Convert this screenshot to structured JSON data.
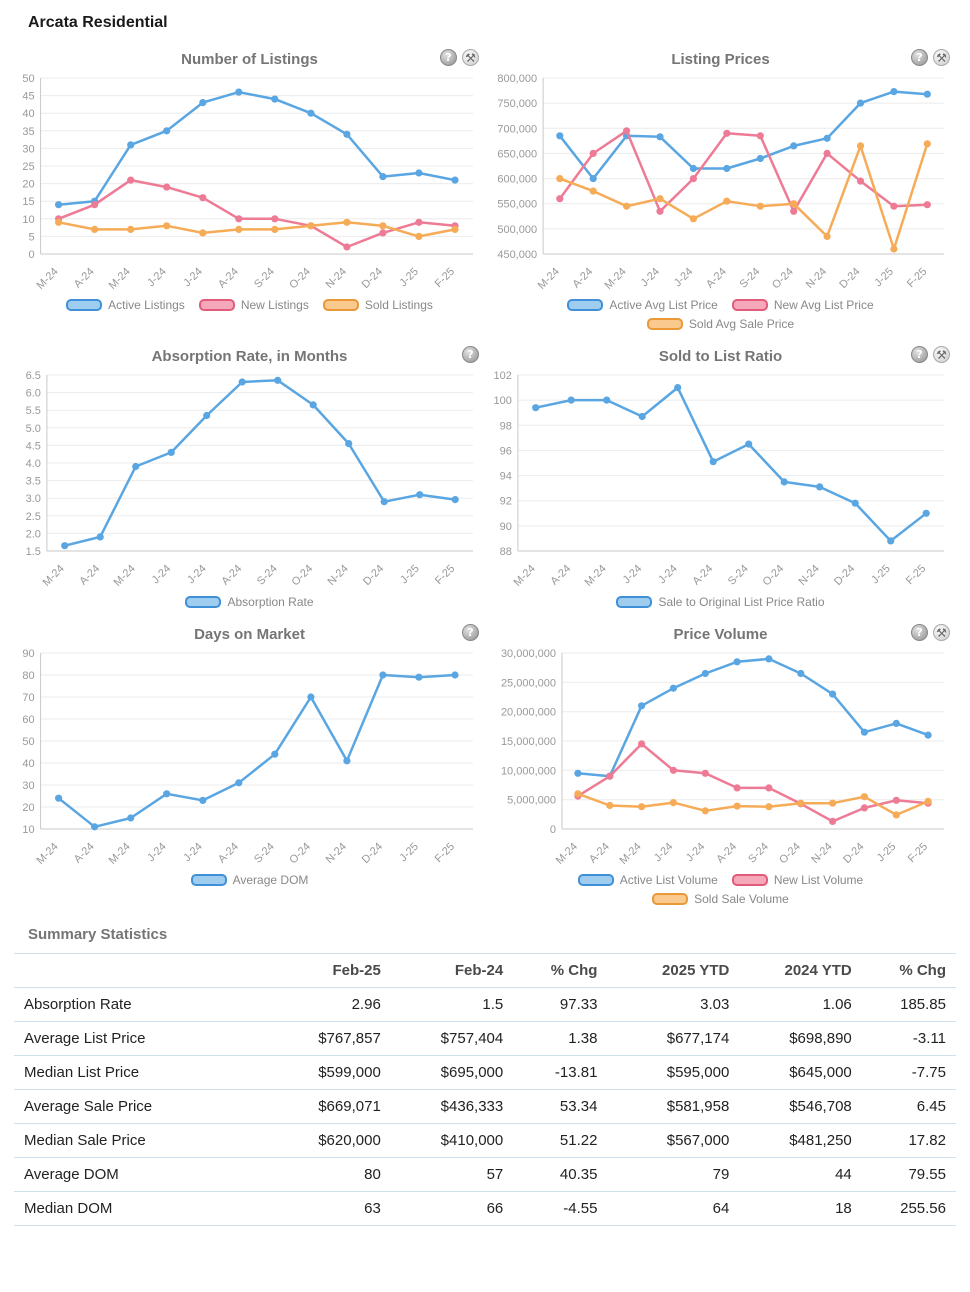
{
  "page": {
    "title": "Arcata Residential"
  },
  "icons": {
    "info": "?",
    "tools": "⚒"
  },
  "colors": {
    "blue": {
      "line": "#5aa6e2",
      "fill": "#9fcdf0",
      "border": "#4090d8"
    },
    "pink": {
      "line": "#ee7b95",
      "fill": "#f4a8ba",
      "border": "#e25b7b"
    },
    "orange": {
      "line": "#f6ab57",
      "fill": "#f9c98d",
      "border": "#ea9838"
    }
  },
  "chart_data": [
    {
      "title": "Number of Listings",
      "type": "line",
      "x": [
        "M-24",
        "A-24",
        "M-24",
        "J-24",
        "J-24",
        "A-24",
        "S-24",
        "O-24",
        "N-24",
        "D-24",
        "J-25",
        "F-25"
      ],
      "ylim": [
        0,
        50
      ],
      "ystep": 5,
      "yformat": "int",
      "grid": true,
      "legend_position": "bottom",
      "icons": [
        "info",
        "tools"
      ],
      "series": [
        {
          "name": "Active Listings",
          "color": "blue",
          "values": [
            14,
            15,
            31,
            35,
            43,
            46,
            44,
            40,
            34,
            22,
            23,
            21
          ]
        },
        {
          "name": "New Listings",
          "color": "pink",
          "values": [
            10,
            14,
            21,
            19,
            16,
            10,
            10,
            8,
            2,
            6,
            9,
            8
          ]
        },
        {
          "name": "Sold Listings",
          "color": "orange",
          "values": [
            9,
            7,
            7,
            8,
            6,
            7,
            7,
            8,
            9,
            8,
            5,
            7
          ]
        }
      ]
    },
    {
      "title": "Listing Prices",
      "type": "line",
      "x": [
        "M-24",
        "A-24",
        "M-24",
        "J-24",
        "J-24",
        "A-24",
        "S-24",
        "O-24",
        "N-24",
        "D-24",
        "J-25",
        "F-25"
      ],
      "ylim": [
        450000,
        800000
      ],
      "ystep": 50000,
      "yformat": "comma",
      "grid": true,
      "legend_position": "bottom",
      "icons": [
        "info",
        "tools"
      ],
      "series": [
        {
          "name": "Active Avg List Price",
          "color": "blue",
          "values": [
            685000,
            600000,
            685000,
            683000,
            620000,
            620000,
            640000,
            665000,
            680000,
            750000,
            773000,
            767857
          ]
        },
        {
          "name": "New Avg List Price",
          "color": "pink",
          "values": [
            560000,
            650000,
            695000,
            535000,
            600000,
            690000,
            685000,
            535000,
            650000,
            595000,
            545000,
            548000
          ]
        },
        {
          "name": "Sold Avg Sale Price",
          "color": "orange",
          "values": [
            600000,
            575000,
            545000,
            560000,
            520000,
            555000,
            545000,
            550000,
            485000,
            665000,
            460000,
            669071
          ]
        }
      ]
    },
    {
      "title": "Absorption Rate, in Months",
      "type": "line",
      "x": [
        "M-24",
        "A-24",
        "M-24",
        "J-24",
        "J-24",
        "A-24",
        "S-24",
        "O-24",
        "N-24",
        "D-24",
        "J-25",
        "F-25"
      ],
      "ylim": [
        1.5,
        6.5
      ],
      "ystep": 0.5,
      "yformat": "dec1",
      "grid": true,
      "legend_position": "bottom",
      "icons": [
        "info"
      ],
      "series": [
        {
          "name": "Absorption Rate",
          "color": "blue",
          "values": [
            1.65,
            1.9,
            3.9,
            4.3,
            5.35,
            6.3,
            6.35,
            5.65,
            4.55,
            2.9,
            3.1,
            2.96
          ]
        }
      ]
    },
    {
      "title": "Sold to List Ratio",
      "type": "line",
      "x": [
        "M-24",
        "A-24",
        "M-24",
        "J-24",
        "J-24",
        "A-24",
        "S-24",
        "O-24",
        "N-24",
        "D-24",
        "J-25",
        "F-25"
      ],
      "ylim": [
        88,
        102
      ],
      "ystep": 2,
      "yformat": "int",
      "grid": true,
      "legend_position": "bottom",
      "icons": [
        "info",
        "tools"
      ],
      "series": [
        {
          "name": "Sale to Original List Price Ratio",
          "color": "blue",
          "values": [
            99.4,
            100,
            100,
            98.7,
            101,
            95.1,
            96.5,
            93.5,
            93.1,
            91.8,
            88.8,
            91
          ]
        }
      ]
    },
    {
      "title": "Days on Market",
      "type": "line",
      "x": [
        "M-24",
        "A-24",
        "M-24",
        "J-24",
        "J-24",
        "A-24",
        "S-24",
        "O-24",
        "N-24",
        "D-24",
        "J-25",
        "F-25"
      ],
      "ylim": [
        10,
        90
      ],
      "ystep": 10,
      "yformat": "int",
      "grid": true,
      "legend_position": "bottom",
      "icons": [
        "info"
      ],
      "series": [
        {
          "name": "Average DOM",
          "color": "blue",
          "values": [
            24,
            11,
            15,
            26,
            23,
            31,
            44,
            70,
            41,
            80,
            79,
            80
          ]
        }
      ]
    },
    {
      "title": "Price Volume",
      "type": "line",
      "x": [
        "M-24",
        "A-24",
        "M-24",
        "J-24",
        "J-24",
        "A-24",
        "S-24",
        "O-24",
        "N-24",
        "D-24",
        "J-25",
        "F-25"
      ],
      "ylim": [
        0,
        30000000
      ],
      "ystep": 5000000,
      "yformat": "comma",
      "grid": true,
      "legend_position": "bottom",
      "icons": [
        "info",
        "tools"
      ],
      "series": [
        {
          "name": "Active List Volume",
          "color": "blue",
          "values": [
            9500000,
            9000000,
            21000000,
            24000000,
            26500000,
            28500000,
            29000000,
            26500000,
            23000000,
            16500000,
            18000000,
            16000000
          ]
        },
        {
          "name": "New List Volume",
          "color": "pink",
          "values": [
            5600000,
            9000000,
            14500000,
            10000000,
            9500000,
            7000000,
            7000000,
            4300000,
            1300000,
            3600000,
            4900000,
            4400000
          ]
        },
        {
          "name": "Sold Sale Volume",
          "color": "orange",
          "values": [
            6000000,
            4000000,
            3800000,
            4500000,
            3100000,
            3900000,
            3800000,
            4400000,
            4400000,
            5500000,
            2400000,
            4700000
          ]
        }
      ]
    }
  ],
  "summary": {
    "title": "Summary Statistics",
    "columns": [
      "",
      "Feb-25",
      "Feb-24",
      "% Chg",
      "2025 YTD",
      "2024 YTD",
      "% Chg"
    ],
    "rows": [
      {
        "label": "Absorption Rate",
        "values": [
          "2.96",
          "1.5",
          "97.33",
          "3.03",
          "1.06",
          "185.85"
        ]
      },
      {
        "label": "Average List Price",
        "values": [
          "$767,857",
          "$757,404",
          "1.38",
          "$677,174",
          "$698,890",
          "-3.11"
        ]
      },
      {
        "label": "Median List Price",
        "values": [
          "$599,000",
          "$695,000",
          "-13.81",
          "$595,000",
          "$645,000",
          "-7.75"
        ]
      },
      {
        "label": "Average Sale Price",
        "values": [
          "$669,071",
          "$436,333",
          "53.34",
          "$581,958",
          "$546,708",
          "6.45"
        ]
      },
      {
        "label": "Median Sale Price",
        "values": [
          "$620,000",
          "$410,000",
          "51.22",
          "$567,000",
          "$481,250",
          "17.82"
        ]
      },
      {
        "label": "Average DOM",
        "values": [
          "80",
          "57",
          "40.35",
          "79",
          "44",
          "79.55"
        ]
      },
      {
        "label": "Median DOM",
        "values": [
          "63",
          "66",
          "-4.55",
          "64",
          "18",
          "255.56"
        ]
      }
    ]
  }
}
